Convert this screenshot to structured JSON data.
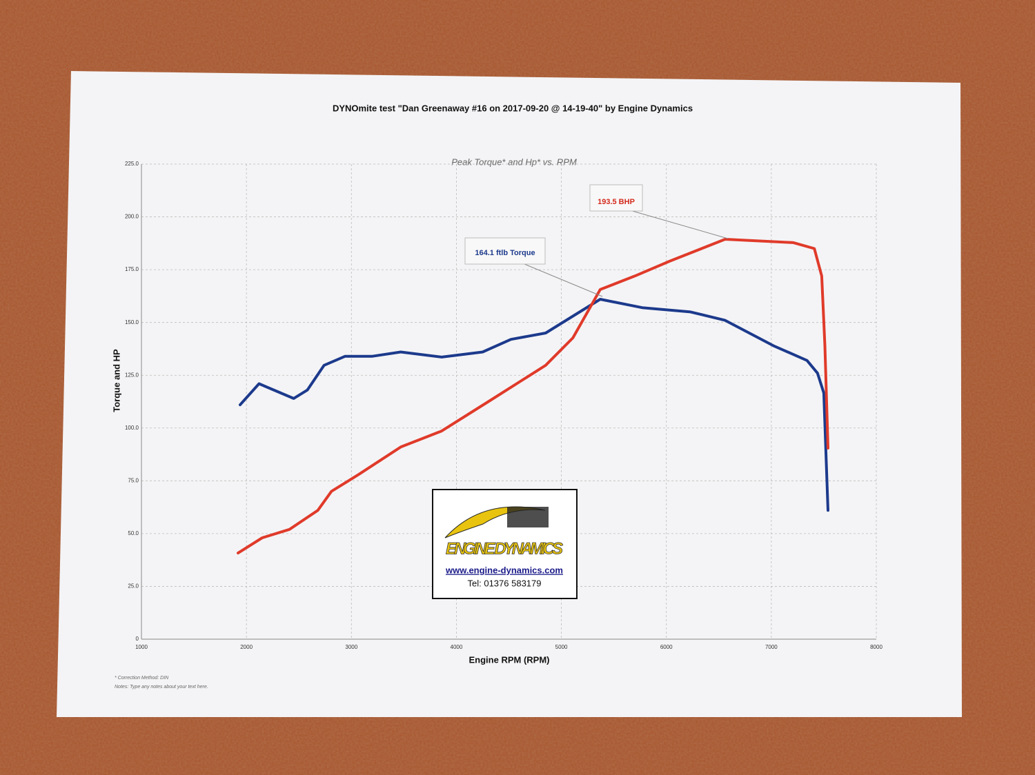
{
  "chart_data": {
    "type": "line",
    "title": "DYNOmite test \"Dan Greenaway #16 on 2017-09-20 @ 14-19-40\" by Engine Dynamics",
    "subtitle": "Peak Torque* and Hp* vs. RPM",
    "x_label": "Engine RPM (RPM)",
    "y_label": "Torque and HP",
    "xlim": [
      1000,
      8000
    ],
    "xticks": [
      1000,
      2000,
      3000,
      4000,
      5000,
      6000,
      7000,
      8000
    ],
    "ylim": [
      0,
      225
    ],
    "yticks": [
      0,
      {
        "value": 25,
        "label": "25.0"
      },
      {
        "value": 50,
        "label": "50.0"
      },
      {
        "value": 75,
        "label": "75.0"
      },
      {
        "value": 100,
        "label": "100.0"
      },
      {
        "value": 125,
        "label": "125.0"
      },
      {
        "value": 150,
        "label": "150.0"
      },
      {
        "value": 175,
        "label": "175.0"
      },
      {
        "value": 200,
        "label": "200.0"
      },
      {
        "value": 225,
        "label": "225.0"
      }
    ],
    "grid": true,
    "series": [
      {
        "name": "Torque",
        "color": "#1c3a8c",
        "x": [
          1940,
          2120,
          2280,
          2450,
          2580,
          2740,
          2940,
          3200,
          3470,
          3860,
          4250,
          4520,
          4850,
          5110,
          5370,
          5770,
          6230,
          6560,
          7020,
          7340,
          7440,
          7500,
          7540
        ],
        "values": [
          111,
          121,
          117.6,
          114,
          118,
          129.7,
          134,
          134,
          136,
          133.6,
          136,
          142,
          145,
          153,
          161,
          157,
          155,
          151,
          139,
          132,
          126,
          116.6,
          61
        ]
      },
      {
        "name": "HP",
        "color": "#e03a2a",
        "x": [
          1920,
          2150,
          2410,
          2680,
          2810,
          3070,
          3470,
          3860,
          4320,
          4850,
          5110,
          5370,
          5700,
          6030,
          6560,
          7210,
          7410,
          7480,
          7510,
          7540
        ],
        "values": [
          40.8,
          48,
          52,
          61,
          70,
          78,
          91,
          98.6,
          113,
          129.7,
          142.7,
          165.6,
          172,
          179,
          189.4,
          187.8,
          185,
          172,
          139,
          90.5
        ]
      }
    ],
    "annotations": [
      "193.5 BHP",
      "164.1 ftlb Torque"
    ],
    "notes": [
      "* Correction Method: DIN",
      "Notes: Type any notes about your text here."
    ],
    "logo": {
      "name": "ENGINE DYNAMICS",
      "url": "www.engine-dynamics.com",
      "phone": "Tel: 01376 583179"
    }
  }
}
